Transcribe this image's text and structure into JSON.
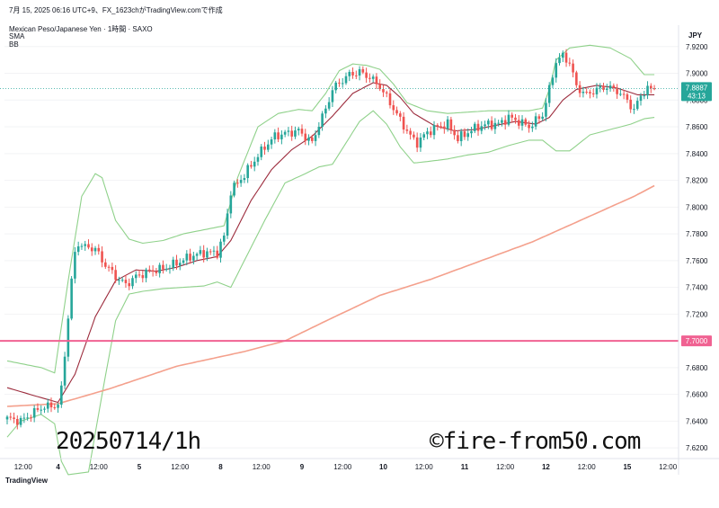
{
  "header": {
    "line1": "7月 15, 2025 06:16 UTC+9、FX_1623chがTradingView.comで作成",
    "symbol": "Mexican Peso/Japanese Yen · 1時間 · SAXO",
    "indicator1": "SMA",
    "indicator2": "BB"
  },
  "currency": "JPY",
  "price_tag": {
    "price": "7.8887",
    "countdown": "43:13"
  },
  "level_tag": "7.7000",
  "watermark_left": "20250714/1h",
  "watermark_right": "©fire-from50.com",
  "footer_logo": "TradingView",
  "colors": {
    "up": "#26a69a",
    "down": "#ef5350",
    "sma_short": "#9c2b3c",
    "sma_long": "#f4a08c",
    "bb": "#8fd18a",
    "level": "#f06292",
    "tag_price": "#26a69a",
    "tag_level": "#f06292"
  },
  "chart_data": {
    "type": "candlestick",
    "title": "",
    "y_ticks": [
      "7.9200",
      "7.9000",
      "7.8800",
      "7.8600",
      "7.8400",
      "7.8200",
      "7.8000",
      "7.7800",
      "7.7600",
      "7.7400",
      "7.7200",
      "7.6800",
      "7.6600",
      "7.6400",
      "7.6200"
    ],
    "ylim": [
      7.612,
      7.936
    ],
    "x_ticks": [
      "12:00",
      "4",
      "12:00",
      "5",
      "12:00",
      "8",
      "12:00",
      "9",
      "12:00",
      "10",
      "12:00",
      "11",
      "12:00",
      "12",
      "12:00",
      "15",
      "12:00"
    ],
    "horizontal_level": 7.7,
    "current_price": 7.8887,
    "close_anchors": [
      [
        0,
        7.642
      ],
      [
        4,
        7.64
      ],
      [
        10,
        7.65
      ],
      [
        15,
        7.652
      ],
      [
        16,
        7.664
      ],
      [
        17,
        7.69
      ],
      [
        18,
        7.718
      ],
      [
        19,
        7.745
      ],
      [
        20,
        7.765
      ],
      [
        21,
        7.773
      ],
      [
        23,
        7.77
      ],
      [
        26,
        7.769
      ],
      [
        28,
        7.76
      ],
      [
        32,
        7.748
      ],
      [
        35,
        7.742
      ],
      [
        38,
        7.748
      ],
      [
        42,
        7.752
      ],
      [
        46,
        7.754
      ],
      [
        50,
        7.758
      ],
      [
        54,
        7.763
      ],
      [
        58,
        7.766
      ],
      [
        62,
        7.766
      ],
      [
        64,
        7.778
      ],
      [
        66,
        7.812
      ],
      [
        70,
        7.824
      ],
      [
        73,
        7.835
      ],
      [
        76,
        7.845
      ],
      [
        79,
        7.853
      ],
      [
        82,
        7.855
      ],
      [
        86,
        7.857
      ],
      [
        90,
        7.848
      ],
      [
        92,
        7.862
      ],
      [
        94,
        7.873
      ],
      [
        96,
        7.888
      ],
      [
        98,
        7.893
      ],
      [
        101,
        7.899
      ],
      [
        104,
        7.901
      ],
      [
        107,
        7.897
      ],
      [
        110,
        7.89
      ],
      [
        113,
        7.878
      ],
      [
        116,
        7.865
      ],
      [
        119,
        7.853
      ],
      [
        121,
        7.848
      ],
      [
        124,
        7.856
      ],
      [
        127,
        7.86
      ],
      [
        130,
        7.862
      ],
      [
        133,
        7.851
      ],
      [
        136,
        7.856
      ],
      [
        139,
        7.86
      ],
      [
        142,
        7.862
      ],
      [
        145,
        7.862
      ],
      [
        148,
        7.867
      ],
      [
        151,
        7.864
      ],
      [
        154,
        7.86
      ],
      [
        158,
        7.869
      ],
      [
        160,
        7.888
      ],
      [
        162,
        7.909
      ],
      [
        164,
        7.913
      ],
      [
        166,
        7.908
      ],
      [
        168,
        7.89
      ],
      [
        171,
        7.884
      ],
      [
        174,
        7.888
      ],
      [
        177,
        7.89
      ],
      [
        180,
        7.887
      ],
      [
        183,
        7.88
      ],
      [
        185,
        7.872
      ],
      [
        187,
        7.884
      ],
      [
        189,
        7.888
      ],
      [
        191,
        7.8887
      ]
    ],
    "sma_short_anchors": [
      [
        0,
        7.665
      ],
      [
        8,
        7.659
      ],
      [
        15,
        7.654
      ],
      [
        20,
        7.675
      ],
      [
        26,
        7.718
      ],
      [
        32,
        7.745
      ],
      [
        38,
        7.753
      ],
      [
        44,
        7.752
      ],
      [
        50,
        7.755
      ],
      [
        56,
        7.76
      ],
      [
        62,
        7.763
      ],
      [
        66,
        7.775
      ],
      [
        72,
        7.805
      ],
      [
        78,
        7.828
      ],
      [
        84,
        7.843
      ],
      [
        90,
        7.853
      ],
      [
        96,
        7.868
      ],
      [
        102,
        7.885
      ],
      [
        108,
        7.893
      ],
      [
        112,
        7.891
      ],
      [
        116,
        7.882
      ],
      [
        120,
        7.87
      ],
      [
        126,
        7.861
      ],
      [
        132,
        7.857
      ],
      [
        138,
        7.858
      ],
      [
        144,
        7.861
      ],
      [
        150,
        7.864
      ],
      [
        156,
        7.862
      ],
      [
        160,
        7.867
      ],
      [
        164,
        7.88
      ],
      [
        168,
        7.888
      ],
      [
        174,
        7.891
      ],
      [
        180,
        7.889
      ],
      [
        186,
        7.884
      ],
      [
        191,
        7.884
      ]
    ],
    "sma_long_anchors": [
      [
        0,
        7.651
      ],
      [
        15,
        7.653
      ],
      [
        30,
        7.664
      ],
      [
        50,
        7.681
      ],
      [
        70,
        7.692
      ],
      [
        82,
        7.7
      ],
      [
        95,
        7.716
      ],
      [
        110,
        7.734
      ],
      [
        125,
        7.746
      ],
      [
        140,
        7.76
      ],
      [
        155,
        7.774
      ],
      [
        170,
        7.791
      ],
      [
        185,
        7.808
      ],
      [
        191,
        7.816
      ]
    ],
    "bb_upper_anchors": [
      [
        0,
        7.685
      ],
      [
        10,
        7.68
      ],
      [
        14,
        7.676
      ],
      [
        18,
        7.745
      ],
      [
        22,
        7.808
      ],
      [
        26,
        7.825
      ],
      [
        28,
        7.822
      ],
      [
        32,
        7.79
      ],
      [
        36,
        7.776
      ],
      [
        40,
        7.773
      ],
      [
        46,
        7.775
      ],
      [
        52,
        7.78
      ],
      [
        58,
        7.783
      ],
      [
        64,
        7.786
      ],
      [
        68,
        7.822
      ],
      [
        74,
        7.86
      ],
      [
        80,
        7.87
      ],
      [
        86,
        7.873
      ],
      [
        90,
        7.872
      ],
      [
        94,
        7.885
      ],
      [
        98,
        7.902
      ],
      [
        102,
        7.907
      ],
      [
        106,
        7.906
      ],
      [
        110,
        7.903
      ],
      [
        114,
        7.892
      ],
      [
        118,
        7.878
      ],
      [
        124,
        7.872
      ],
      [
        130,
        7.87
      ],
      [
        136,
        7.871
      ],
      [
        142,
        7.872
      ],
      [
        148,
        7.872
      ],
      [
        154,
        7.872
      ],
      [
        158,
        7.874
      ],
      [
        160,
        7.888
      ],
      [
        162,
        7.91
      ],
      [
        166,
        7.919
      ],
      [
        172,
        7.921
      ],
      [
        178,
        7.919
      ],
      [
        184,
        7.911
      ],
      [
        188,
        7.899
      ],
      [
        191,
        7.899
      ]
    ],
    "bb_lower_anchors": [
      [
        0,
        7.628
      ],
      [
        4,
        7.64
      ],
      [
        10,
        7.645
      ],
      [
        14,
        7.638
      ],
      [
        16,
        7.61
      ],
      [
        18,
        7.6
      ],
      [
        24,
        7.602
      ],
      [
        28,
        7.66
      ],
      [
        32,
        7.715
      ],
      [
        36,
        7.735
      ],
      [
        40,
        7.737
      ],
      [
        46,
        7.739
      ],
      [
        52,
        7.74
      ],
      [
        58,
        7.741
      ],
      [
        62,
        7.744
      ],
      [
        66,
        7.74
      ],
      [
        70,
        7.76
      ],
      [
        76,
        7.79
      ],
      [
        82,
        7.818
      ],
      [
        88,
        7.825
      ],
      [
        92,
        7.83
      ],
      [
        96,
        7.832
      ],
      [
        100,
        7.848
      ],
      [
        104,
        7.864
      ],
      [
        108,
        7.872
      ],
      [
        112,
        7.862
      ],
      [
        116,
        7.845
      ],
      [
        120,
        7.833
      ],
      [
        124,
        7.834
      ],
      [
        130,
        7.836
      ],
      [
        136,
        7.839
      ],
      [
        142,
        7.841
      ],
      [
        148,
        7.846
      ],
      [
        154,
        7.85
      ],
      [
        158,
        7.85
      ],
      [
        162,
        7.842
      ],
      [
        166,
        7.842
      ],
      [
        172,
        7.854
      ],
      [
        178,
        7.858
      ],
      [
        184,
        7.862
      ],
      [
        188,
        7.866
      ],
      [
        191,
        7.867
      ]
    ]
  }
}
